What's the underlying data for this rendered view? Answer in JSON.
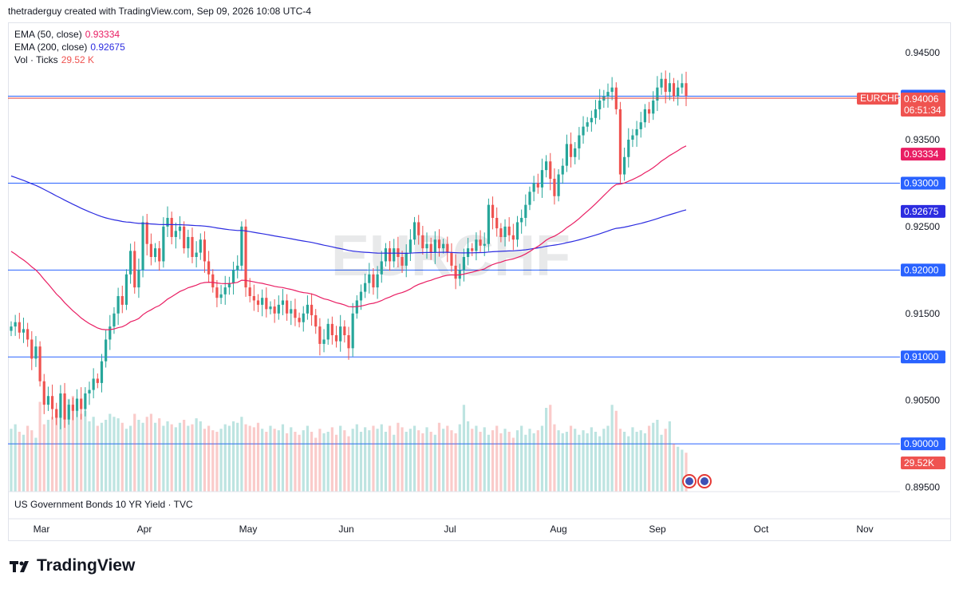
{
  "header": {
    "credit": "thetraderguy created with TradingView.com, Sep 09, 2026 10:08 UTC-4"
  },
  "legend": {
    "ema50_label": "EMA (50, close)",
    "ema50_value": "0.93334",
    "ema200_label": "EMA (200, close)",
    "ema200_value": "0.92675",
    "vol_label": "Vol · Ticks",
    "vol_value": "29.52 K"
  },
  "bottom_pane": {
    "label": "US Government Bonds 10 YR Yield · TVC"
  },
  "brand": {
    "name": "TradingView"
  },
  "watermark": "EURCHF",
  "colors": {
    "up": "#26a69a",
    "down": "#ef5350",
    "ema50": "#e91e63",
    "ema200": "#2c2ce0",
    "hline": "#2962ff"
  },
  "chart_data": {
    "type": "candlestick",
    "symbol": "EURCHF",
    "x_ticks": [
      "Mar",
      "Apr",
      "May",
      "Jun",
      "Jul",
      "Aug",
      "Sep",
      "Oct",
      "Nov"
    ],
    "y_ticks": [
      "0.94500",
      "0.93500",
      "0.92500",
      "0.91500",
      "0.90500",
      "0.89500"
    ],
    "ylim": [
      0.8945,
      0.9485
    ],
    "horizontal_lines": [
      {
        "value": 0.94,
        "label": "0.94000"
      },
      {
        "value": 0.93,
        "label": "0.93000"
      },
      {
        "value": 0.92,
        "label": "0.92000"
      },
      {
        "value": 0.91,
        "label": "0.91000"
      },
      {
        "value": 0.9,
        "label": "0.90000"
      }
    ],
    "last_price": {
      "symbol_tag": "EURCHF",
      "value": "0.94006",
      "countdown": "06:51:34"
    },
    "ema50_tag": "0.93334",
    "ema200_tag": "0.92675",
    "volume_tag": "29.52K",
    "closes": [
      0.9135,
      0.914,
      0.9128,
      0.9132,
      0.912,
      0.9098,
      0.9112,
      0.9072,
      0.9045,
      0.9055,
      0.904,
      0.903,
      0.9058,
      0.9028,
      0.9045,
      0.9038,
      0.9052,
      0.904,
      0.9058,
      0.9062,
      0.9075,
      0.907,
      0.9095,
      0.912,
      0.9135,
      0.915,
      0.917,
      0.916,
      0.9195,
      0.9222,
      0.918,
      0.92,
      0.9255,
      0.923,
      0.9215,
      0.9225,
      0.921,
      0.925,
      0.926,
      0.9238,
      0.9245,
      0.925,
      0.9225,
      0.9238,
      0.9215,
      0.922,
      0.9235,
      0.921,
      0.9195,
      0.918,
      0.9168,
      0.9172,
      0.918,
      0.9185,
      0.92,
      0.9205,
      0.925,
      0.918,
      0.917,
      0.9165,
      0.916,
      0.9168,
      0.9155,
      0.9158,
      0.915,
      0.916,
      0.9165,
      0.915,
      0.9155,
      0.9145,
      0.914,
      0.915,
      0.916,
      0.9148,
      0.9135,
      0.9115,
      0.912,
      0.9138,
      0.9125,
      0.9118,
      0.9135,
      0.9125,
      0.911,
      0.915,
      0.9165,
      0.9175,
      0.9185,
      0.9195,
      0.918,
      0.9195,
      0.921,
      0.9225,
      0.921,
      0.9225,
      0.9215,
      0.9205,
      0.922,
      0.9235,
      0.9255,
      0.924,
      0.9225,
      0.923,
      0.922,
      0.9235,
      0.9225,
      0.923,
      0.922,
      0.9205,
      0.919,
      0.92,
      0.9215,
      0.9225,
      0.9222,
      0.9235,
      0.9228,
      0.923,
      0.9275,
      0.926,
      0.9248,
      0.9238,
      0.925,
      0.924,
      0.9235,
      0.9255,
      0.926,
      0.9275,
      0.929,
      0.93,
      0.9295,
      0.9315,
      0.9325,
      0.9305,
      0.9285,
      0.931,
      0.932,
      0.9345,
      0.933,
      0.934,
      0.9355,
      0.9365,
      0.937,
      0.9375,
      0.9385,
      0.9395,
      0.94,
      0.9405,
      0.941,
      0.9385,
      0.931,
      0.933,
      0.935,
      0.9355,
      0.9362,
      0.937,
      0.9385,
      0.938,
      0.9395,
      0.941,
      0.942,
      0.9405,
      0.9415,
      0.94,
      0.941,
      0.9415,
      0.94006
    ],
    "volumes": [
      42,
      45,
      40,
      38,
      44,
      41,
      36,
      60,
      45,
      48,
      50,
      52,
      58,
      55,
      62,
      64,
      56,
      52,
      54,
      47,
      50,
      44,
      46,
      48,
      52,
      50,
      49,
      46,
      42,
      44,
      52,
      48,
      46,
      50,
      52,
      46,
      49,
      44,
      47,
      45,
      43,
      46,
      48,
      44,
      45,
      49,
      47,
      42,
      44,
      41,
      40,
      42,
      45,
      44,
      47,
      46,
      50,
      45,
      44,
      43,
      46,
      42,
      40,
      44,
      42,
      41,
      45,
      39,
      43,
      40,
      38,
      41,
      44,
      40,
      36,
      42,
      39,
      40,
      43,
      38,
      44,
      41,
      37,
      42,
      45,
      40,
      43,
      41,
      44,
      42,
      45,
      40,
      44,
      38,
      46,
      43,
      40,
      42,
      44,
      41,
      39,
      43,
      40,
      38,
      46,
      42,
      44,
      41,
      39,
      45,
      58,
      47,
      42,
      44,
      40,
      43,
      38,
      41,
      44,
      39,
      42,
      40,
      36,
      41,
      44,
      38,
      42,
      39,
      41,
      44,
      56,
      58,
      45,
      41,
      39,
      40,
      44,
      42,
      38,
      41,
      39,
      43,
      40,
      37,
      42,
      44,
      58,
      54,
      42,
      40,
      37,
      43,
      40,
      41,
      39,
      44,
      46,
      48,
      38,
      42,
      47,
      32,
      30,
      28,
      26
    ]
  }
}
